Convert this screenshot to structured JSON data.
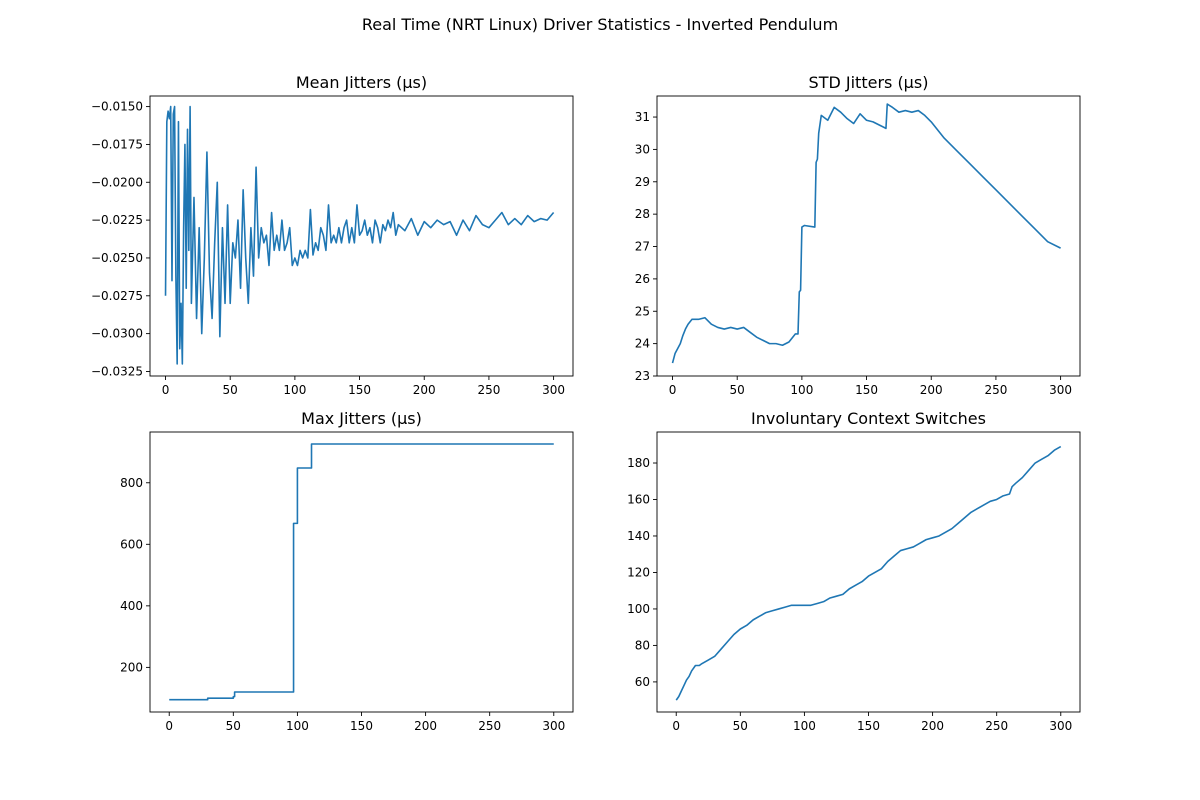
{
  "suptitle": "Real Time (NRT Linux) Driver Statistics - Inverted Pendulum",
  "style": {
    "line_color": "#1f77b4",
    "axes_color": "#000000"
  },
  "chart_data": [
    {
      "type": "line",
      "title": "Mean Jitters (µs)",
      "xlim": [
        -12,
        315
      ],
      "ylim": [
        -0.0328,
        -0.0143
      ],
      "xticks": [
        0,
        50,
        100,
        150,
        200,
        250,
        300
      ],
      "yticks": [
        -0.0325,
        -0.03,
        -0.0275,
        -0.025,
        -0.0225,
        -0.02,
        -0.0175,
        -0.015
      ],
      "ytick_labels": [
        "−0.0325",
        "−0.0300",
        "−0.0275",
        "−0.0250",
        "−0.0225",
        "−0.0200",
        "−0.0175",
        "−0.0150"
      ],
      "x": [
        0,
        1,
        2,
        3,
        4,
        5,
        6,
        7,
        8,
        9,
        10,
        11,
        12,
        13,
        14,
        15,
        16,
        17,
        18,
        19,
        20,
        22,
        24,
        26,
        28,
        30,
        32,
        34,
        36,
        38,
        40,
        42,
        44,
        46,
        48,
        50,
        52,
        54,
        56,
        58,
        60,
        62,
        64,
        66,
        68,
        70,
        72,
        74,
        76,
        78,
        80,
        82,
        84,
        86,
        88,
        90,
        92,
        94,
        96,
        98,
        100,
        102,
        104,
        106,
        108,
        110,
        112,
        114,
        116,
        118,
        120,
        122,
        124,
        126,
        128,
        130,
        132,
        134,
        136,
        138,
        140,
        142,
        144,
        146,
        148,
        150,
        152,
        154,
        156,
        158,
        160,
        162,
        164,
        166,
        168,
        170,
        172,
        174,
        176,
        178,
        180,
        185,
        190,
        195,
        200,
        205,
        210,
        215,
        220,
        225,
        230,
        235,
        240,
        245,
        250,
        255,
        260,
        265,
        270,
        275,
        280,
        285,
        290,
        295,
        300
      ],
      "y": [
        -0.0275,
        -0.016,
        -0.0153,
        -0.0158,
        -0.015,
        -0.0265,
        -0.0155,
        -0.015,
        -0.0262,
        -0.032,
        -0.016,
        -0.031,
        -0.028,
        -0.032,
        -0.023,
        -0.0175,
        -0.027,
        -0.0165,
        -0.0245,
        -0.015,
        -0.028,
        -0.021,
        -0.029,
        -0.023,
        -0.03,
        -0.025,
        -0.018,
        -0.026,
        -0.029,
        -0.024,
        -0.02,
        -0.0302,
        -0.023,
        -0.028,
        -0.0215,
        -0.028,
        -0.024,
        -0.025,
        -0.0225,
        -0.027,
        -0.0205,
        -0.025,
        -0.028,
        -0.023,
        -0.0262,
        -0.019,
        -0.025,
        -0.023,
        -0.024,
        -0.0235,
        -0.0255,
        -0.022,
        -0.0245,
        -0.0235,
        -0.0245,
        -0.0225,
        -0.0245,
        -0.024,
        -0.023,
        -0.0255,
        -0.025,
        -0.0255,
        -0.0245,
        -0.025,
        -0.0245,
        -0.025,
        -0.0218,
        -0.0248,
        -0.024,
        -0.0245,
        -0.023,
        -0.0235,
        -0.0245,
        -0.0215,
        -0.024,
        -0.0235,
        -0.024,
        -0.023,
        -0.024,
        -0.023,
        -0.0225,
        -0.024,
        -0.023,
        -0.024,
        -0.0215,
        -0.0235,
        -0.0232,
        -0.0225,
        -0.0235,
        -0.023,
        -0.024,
        -0.0225,
        -0.023,
        -0.024,
        -0.0228,
        -0.0232,
        -0.0225,
        -0.023,
        -0.022,
        -0.0235,
        -0.0228,
        -0.0232,
        -0.0224,
        -0.0235,
        -0.0226,
        -0.023,
        -0.0225,
        -0.0228,
        -0.0226,
        -0.0235,
        -0.0225,
        -0.0232,
        -0.0222,
        -0.0228,
        -0.023,
        -0.0225,
        -0.022,
        -0.0228,
        -0.0224,
        -0.0228,
        -0.0222,
        -0.0226,
        -0.0224,
        -0.0225,
        -0.022
      ]
    },
    {
      "type": "line",
      "title": "STD Jitters (µs)",
      "xlim": [
        -12,
        315
      ],
      "ylim": [
        23,
        31.65
      ],
      "xticks": [
        0,
        50,
        100,
        150,
        200,
        250,
        300
      ],
      "yticks": [
        23,
        24,
        25,
        26,
        27,
        28,
        29,
        30,
        31
      ],
      "ytick_labels": [
        "23",
        "24",
        "25",
        "26",
        "27",
        "28",
        "29",
        "30",
        "31"
      ],
      "x": [
        0,
        2,
        4,
        6,
        8,
        10,
        12,
        15,
        20,
        25,
        30,
        35,
        40,
        45,
        50,
        55,
        60,
        65,
        70,
        75,
        80,
        85,
        90,
        95,
        97,
        98,
        99,
        100,
        102,
        110,
        111,
        112,
        113,
        115,
        120,
        125,
        130,
        135,
        140,
        145,
        150,
        155,
        160,
        165,
        166,
        170,
        175,
        180,
        185,
        190,
        195,
        200,
        210,
        220,
        230,
        240,
        250,
        260,
        270,
        280,
        290,
        300
      ],
      "y": [
        23.4,
        23.7,
        23.85,
        24.0,
        24.25,
        24.45,
        24.6,
        24.75,
        24.75,
        24.8,
        24.6,
        24.5,
        24.45,
        24.5,
        24.45,
        24.5,
        24.35,
        24.2,
        24.1,
        24.0,
        24.0,
        23.95,
        24.05,
        24.3,
        24.3,
        25.6,
        25.65,
        27.6,
        27.65,
        27.6,
        29.6,
        29.7,
        30.5,
        31.05,
        30.9,
        31.3,
        31.15,
        30.95,
        30.8,
        31.1,
        30.9,
        30.85,
        30.75,
        30.65,
        31.4,
        31.3,
        31.15,
        31.2,
        31.15,
        31.2,
        31.05,
        30.85,
        30.35,
        29.95,
        29.55,
        29.15,
        28.75,
        28.35,
        27.95,
        27.55,
        27.15,
        26.95
      ]
    },
    {
      "type": "line",
      "title": "Max Jitters (µs)",
      "xlim": [
        -15,
        315
      ],
      "ylim": [
        55,
        965
      ],
      "xticks": [
        0,
        50,
        100,
        150,
        200,
        250,
        300
      ],
      "yticks": [
        200,
        400,
        600,
        800
      ],
      "ytick_labels": [
        "200",
        "400",
        "600",
        "800"
      ],
      "x": [
        0,
        30,
        30,
        50,
        50,
        51,
        51,
        97,
        97,
        100,
        100,
        111,
        111,
        300
      ],
      "y": [
        95,
        95,
        100,
        100,
        105,
        105,
        120,
        120,
        668,
        668,
        848,
        848,
        926,
        926
      ]
    },
    {
      "type": "line",
      "title": "Involuntary Context Switches",
      "xlim": [
        -15,
        315
      ],
      "ylim": [
        43.5,
        197
      ],
      "xticks": [
        0,
        50,
        100,
        150,
        200,
        250,
        300
      ],
      "yticks": [
        60,
        80,
        100,
        120,
        140,
        160,
        180
      ],
      "ytick_labels": [
        "60",
        "80",
        "100",
        "120",
        "140",
        "160",
        "180"
      ],
      "x": [
        0,
        2,
        4,
        6,
        8,
        10,
        12,
        15,
        18,
        20,
        25,
        30,
        35,
        40,
        45,
        50,
        55,
        60,
        65,
        70,
        75,
        80,
        85,
        90,
        95,
        100,
        105,
        110,
        115,
        120,
        125,
        130,
        135,
        140,
        145,
        150,
        155,
        160,
        165,
        170,
        175,
        180,
        185,
        190,
        195,
        200,
        205,
        210,
        215,
        220,
        225,
        230,
        235,
        240,
        245,
        250,
        255,
        260,
        262,
        265,
        270,
        275,
        280,
        285,
        290,
        295,
        300
      ],
      "y": [
        50,
        52,
        55,
        58,
        61,
        63,
        66,
        69,
        69,
        70,
        72,
        74,
        78,
        82,
        86,
        89,
        91,
        94,
        96,
        98,
        99,
        100,
        101,
        102,
        102,
        102,
        102,
        103,
        104,
        106,
        107,
        108,
        111,
        113,
        115,
        118,
        120,
        122,
        126,
        129,
        132,
        133,
        134,
        136,
        138,
        139,
        140,
        142,
        144,
        147,
        150,
        153,
        155,
        157,
        159,
        160,
        162,
        163,
        167,
        169,
        172,
        176,
        180,
        182,
        184,
        187,
        189
      ]
    }
  ]
}
